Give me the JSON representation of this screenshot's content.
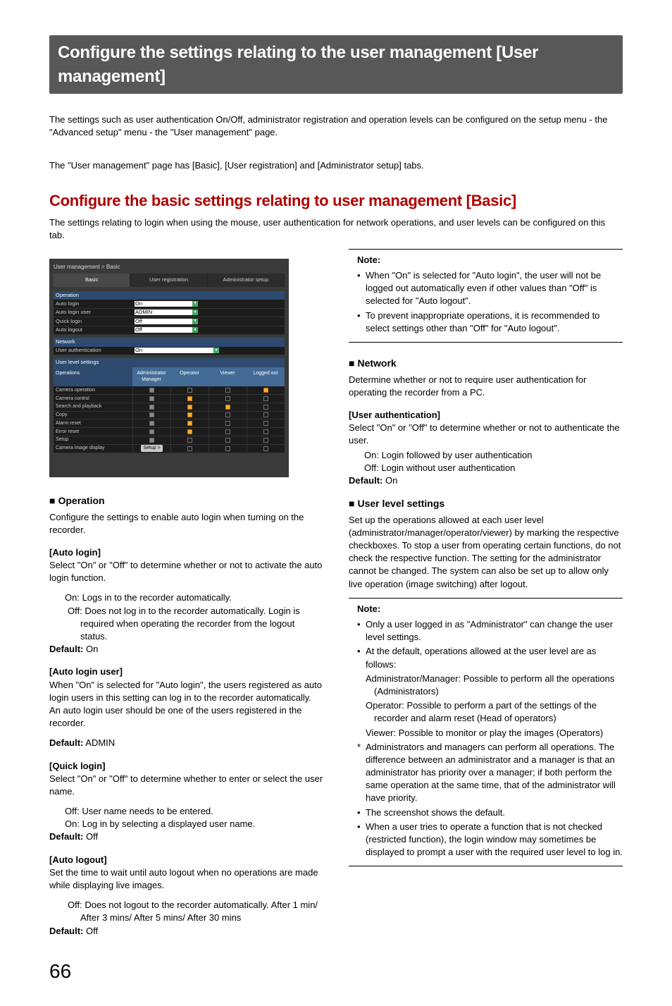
{
  "page_number": "66",
  "banner_title": "Configure the settings relating to the user management [User management]",
  "intro_p1": "The settings such as user authentication On/Off, administrator registration and operation levels can be configured on the setup menu - the \"Advanced setup\" menu - the \"User management\" page.",
  "intro_p2": "The \"User management\" page has [Basic], [User registration] and [Administrator setup] tabs.",
  "section_title": "Configure the basic settings relating to user management [Basic]",
  "section_intro": "The settings relating to login when using the mouse, user authentication for network operations, and user levels can be configured on this tab.",
  "shot": {
    "breadcrumb": "User management > Basic",
    "tabs": [
      "Basic",
      "User registration",
      "Administrator setup"
    ],
    "active_tab": 0,
    "sections": {
      "operation": {
        "head": "Operation",
        "rows": [
          {
            "label": "Auto login",
            "val": "On"
          },
          {
            "label": "Auto login user",
            "val": "ADMIN"
          },
          {
            "label": "Quick login",
            "val": "Off"
          },
          {
            "label": "Auto logout",
            "val": "Off"
          }
        ]
      },
      "network": {
        "head": "Network",
        "rows": [
          {
            "label": "User authentication",
            "val": "On"
          }
        ]
      },
      "userlevel": {
        "head": "User level settings",
        "cols_head": "Operations",
        "cols": [
          "Administrator\nManager",
          "Operator",
          "Viewer",
          "Logged out"
        ],
        "rows": [
          {
            "label": "Camera operation",
            "cells": [
              "admin",
              "",
              "",
              "on"
            ]
          },
          {
            "label": "Camera control",
            "cells": [
              "admin",
              "on",
              "",
              ""
            ]
          },
          {
            "label": "Search and playback",
            "cells": [
              "admin",
              "on",
              "on",
              ""
            ]
          },
          {
            "label": "Copy",
            "cells": [
              "admin",
              "on",
              "",
              ""
            ]
          },
          {
            "label": "Alarm reset",
            "cells": [
              "admin",
              "on",
              "",
              ""
            ]
          },
          {
            "label": "Error reset",
            "cells": [
              "admin",
              "on",
              "",
              ""
            ]
          },
          {
            "label": "Setup",
            "cells": [
              "admin",
              "",
              "",
              ""
            ]
          },
          {
            "label": "Camera image display",
            "cells": [
              "setup",
              "",
              "",
              ""
            ]
          }
        ],
        "setup_label": "Setup  >"
      }
    }
  },
  "left": {
    "operation_head": "Operation",
    "operation_intro": "Configure the settings to enable auto login when turning on the recorder.",
    "f1": {
      "title": "[Auto login]",
      "desc": "Select \"On\" or \"Off\" to determine whether or not to activate the auto login function.",
      "on": "On: Logs in to the recorder automatically.",
      "off": "Off: Does not log in to the recorder automatically. Login is required when operating the recorder from the logout status.",
      "def_label": "Default:",
      "def_val": " On"
    },
    "f2": {
      "title": "[Auto login user]",
      "desc": "When \"On\" is selected for \"Auto login\", the users registered as auto login users in this setting can log in to the recorder automatically. An auto login user should be one of the users registered in the recorder.",
      "def_label": "Default:",
      "def_val": " ADMIN"
    },
    "f3": {
      "title": "[Quick login]",
      "desc": "Select \"On\" or \"Off\" to determine whether to enter or select the user name.",
      "off": "Off: User name needs to be entered.",
      "on": "On: Log in by selecting a displayed user name.",
      "def_label": "Default:",
      "def_val": " Off"
    },
    "f4": {
      "title": "[Auto logout]",
      "desc": "Set the time to wait until auto logout when no operations are made while displaying live images.",
      "off": "Off: Does not logout to the recorder automatically. After 1 min/ After 3 mins/ After 5 mins/ After 30 mins",
      "def_label": "Default:",
      "def_val": " Off"
    }
  },
  "right": {
    "note1": {
      "title": "Note:",
      "b1": "When \"On\" is selected for \"Auto login\", the user will not be logged out automatically even if other values than \"Off\" is selected for \"Auto logout\".",
      "b2": "To prevent inappropriate operations, it is recommended to select settings other than \"Off\" for \"Auto logout\"."
    },
    "network_head": "Network",
    "network_intro": "Determine whether or not to require user authentication for operating the recorder from a PC.",
    "ua": {
      "title": "[User authentication]",
      "desc": "Select \"On\" or \"Off\" to determine whether or not to authenticate the user.",
      "on": "On: Login followed by user authentication",
      "off": "Off: Login without user authentication",
      "def_label": "Default:",
      "def_val": " On"
    },
    "ul_head": "User level settings",
    "ul_intro": "Set up the operations allowed at each user level (administrator/manager/operator/viewer) by marking the respective checkboxes. To stop a user from operating certain functions, do not check the respective function. The setting for the administrator cannot be changed. The system can also be set up to allow only live operation (image switching) after logout.",
    "note2": {
      "title": "Note:",
      "b1": "Only a user logged in as \"Administrator\" can change the user level settings.",
      "b2": "At the default, operations allowed at the user level are as follows:",
      "s1": "Administrator/Manager: Possible to perform all the operations (Administrators)",
      "s2": "Operator: Possible to perform a part of the settings of the recorder and alarm reset (Head of operators)",
      "s3": "Viewer: Possible to monitor or play the images (Operators)",
      "star": "Administrators and managers can perform all operations. The difference between an administrator and a manager is that an administrator has priority over a manager; if both perform the same operation at the same time, that of the administrator will have priority.",
      "b3": "The screenshot shows the default.",
      "b4": "When a user tries to operate a function that is not checked (restricted function), the login window may sometimes be displayed to prompt a user with the required user level to log in."
    }
  },
  "colors": {
    "banner_bg": "#585858",
    "heading": "#b00000",
    "shot_bg": "#3a3a3a",
    "shot_section": "#2e4a6f",
    "shot_head2": "#436b95",
    "check_on": "#ffb030"
  }
}
